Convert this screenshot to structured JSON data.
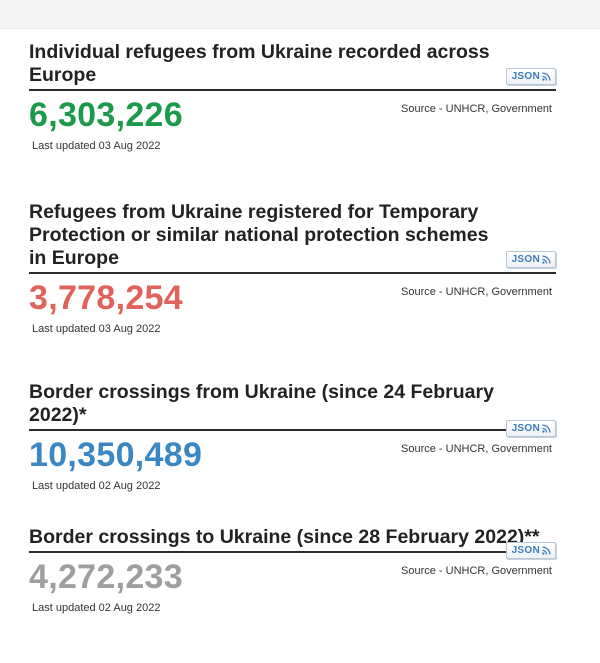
{
  "panels": [
    {
      "title": "Individual refugees from Ukraine recorded across Europe",
      "value": "6,303,226",
      "color": "#1b9a4b",
      "source": "Source - UNHCR, Government",
      "updated": "Last updated 03 Aug 2022",
      "json_label": "JSON"
    },
    {
      "title": "Refugees from Ukraine registered for Temporary Protection or similar national protection schemes in Europe",
      "value": "3,778,254",
      "color": "#e0625a",
      "source": "Source - UNHCR, Government",
      "updated": "Last updated 03 Aug 2022",
      "json_label": "JSON"
    },
    {
      "title": "Border crossings from Ukraine (since 24 February 2022)*",
      "value": "10,350,489",
      "color": "#3b87c4",
      "source": "Source - UNHCR, Government",
      "updated": "Last updated 02 Aug 2022",
      "json_label": "JSON"
    },
    {
      "title": "Border crossings to Ukraine (since 28 February 2022)**",
      "value": "4,272,233",
      "color": "#9e9e9e",
      "source": "Source - UNHCR, Government",
      "updated": "Last updated 02 Aug 2022",
      "json_label": "JSON"
    }
  ],
  "icons": {
    "feed": "rss-feed-icon"
  }
}
